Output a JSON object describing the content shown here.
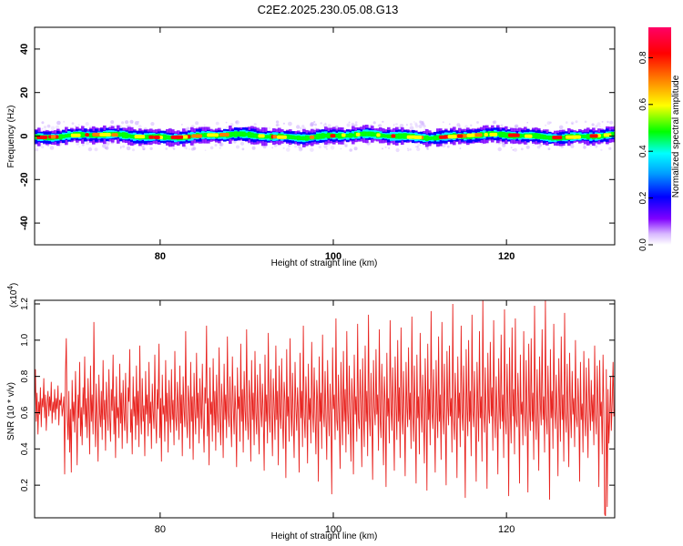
{
  "title": "C2E2.2025.230.05.08.G13",
  "chart_data": [
    {
      "type": "heatmap",
      "xlabel": "Height of straight line (km)",
      "ylabel": "Frequency (Hz)",
      "xlim": [
        65.5,
        132.5
      ],
      "ylim": [
        -50,
        50
      ],
      "xticks": [
        80,
        100,
        120
      ],
      "yticks": [
        -40,
        -20,
        0,
        20,
        40
      ],
      "band_center_hz": 0,
      "band_halfwidth_hz": 3,
      "colorbar": {
        "label": "Normalized spectral amplitude",
        "range": [
          0.0,
          0.93
        ],
        "ticks": [
          "0.0",
          "0.2",
          "0.4",
          "0.6",
          "0.8"
        ],
        "colormap": [
          "#ffffff",
          "#7f00ff",
          "#0000ff",
          "#00ffff",
          "#00ff00",
          "#ffff00",
          "#ff8000",
          "#ff0000",
          "#ff0066"
        ]
      }
    },
    {
      "type": "line",
      "xlabel": "Height of straight line (km)",
      "ylabel": "SNR (10 * v/v)",
      "y_scale_label": "(x10",
      "y_scale_exp": "4",
      "y_scale_suffix": ")",
      "xlim": [
        65.5,
        132.5
      ],
      "ylim": [
        0.02,
        1.22
      ],
      "xticks": [
        80,
        100,
        120
      ],
      "yticks": [
        0.2,
        0.4,
        0.6,
        0.8,
        1.0,
        1.2
      ],
      "ytick_labels": [
        "0.2",
        "0.4",
        "0.6",
        "0.8",
        "1.0",
        "1.2"
      ],
      "color": "#e8231f",
      "series": [
        {
          "x_start": 65.5,
          "x_end": 132.5,
          "values": [
            0.62,
            0.84,
            0.55,
            0.71,
            0.48,
            0.66,
            0.59,
            0.74,
            0.52,
            0.68,
            0.63,
            0.79,
            0.57,
            0.7,
            0.5,
            0.64,
            0.72,
            0.58,
            0.69,
            0.61,
            0.77,
            0.54,
            0.66,
            0.6,
            0.73,
            0.56,
            0.68,
            0.62,
            0.75,
            0.53,
            0.67,
            0.64,
            0.71,
            0.58,
            0.63,
            0.69,
            0.26,
            0.82,
            1.01,
            0.58,
            0.45,
            0.72,
            0.38,
            0.62,
            0.27,
            0.78,
            0.55,
            0.66,
            0.49,
            0.83,
            0.6,
            0.31,
            0.7,
            0.57,
            0.88,
            0.47,
            0.63,
            0.42,
            0.74,
            0.59,
            0.91,
            0.52,
            0.68,
            0.46,
            0.79,
            0.61,
            0.37,
            0.86,
            0.55,
            0.7,
            0.48,
            1.1,
            0.64,
            0.41,
            0.76,
            0.58,
            0.33,
            0.81,
            0.6,
            0.52,
            0.72,
            0.45,
            0.89,
            0.56,
            0.67,
            0.39,
            0.77,
            0.62,
            0.5,
            0.84,
            0.58,
            0.44,
            0.73,
            0.61,
            0.92,
            0.48,
            0.69,
            0.35,
            0.8,
            0.57,
            0.63,
            0.46,
            0.87,
            0.54,
            0.71,
            0.4,
            0.78,
            0.6,
            0.5,
            0.82,
            0.56,
            0.43,
            0.74,
            0.66,
            0.95,
            0.49,
            0.62,
            0.37,
            0.8,
            0.58,
            0.69,
            0.45,
            0.86,
            0.53,
            0.72,
            0.41,
            0.97,
            0.6,
            0.48,
            0.79,
            0.55,
            0.64,
            0.36,
            0.83,
            0.59,
            0.7,
            0.47,
            0.88,
            0.54,
            0.66,
            0.4,
            0.76,
            0.61,
            0.51,
            0.92,
            0.57,
            0.43,
            0.73,
            0.62,
            0.98,
            0.46,
            0.68,
            0.33,
            0.81,
            0.59,
            0.64,
            0.44,
            0.89,
            0.55,
            0.71,
            0.38,
            0.78,
            0.6,
            0.49,
            0.84,
            0.56,
            0.67,
            0.42,
            0.94,
            0.58,
            0.5,
            0.77,
            0.63,
            0.45,
            0.86,
            0.54,
            0.7,
            0.36,
            0.8,
            0.61,
            0.52,
            1.05,
            0.57,
            0.46,
            0.75,
            0.64,
            0.4,
            0.88,
            0.55,
            0.69,
            0.34,
            0.82,
            0.6,
            0.48,
            0.93,
            0.57,
            0.71,
            0.43,
            0.79,
            0.62,
            0.51,
            0.87,
            0.56,
            0.38,
            0.74,
            0.65,
            1.08,
            0.47,
            0.68,
            0.31,
            0.85,
            0.59,
            0.66,
            0.44,
            0.9,
            0.53,
            0.72,
            0.39,
            0.81,
            0.61,
            0.49,
            0.96,
            0.58,
            0.42,
            0.76,
            0.63,
            0.35,
            0.87,
            0.56,
            0.7,
            0.46,
            1.02,
            0.6,
            0.52,
            0.8,
            0.57,
            0.41,
            0.91,
            0.64,
            0.48,
            0.75,
            0.59,
            0.3,
            0.85,
            0.62,
            0.69,
            0.44,
            0.98,
            0.55,
            0.73,
            0.38,
            0.83,
            0.61,
            0.5,
            1.06,
            0.58,
            0.45,
            0.78,
            0.65,
            0.33,
            0.89,
            0.56,
            0.71,
            0.42,
            0.94,
            0.6,
            0.48,
            0.81,
            0.57,
            0.37,
            0.87,
            0.63,
            0.52,
            0.76,
            0.59,
            0.28,
            0.92,
            0.55,
            0.7,
            0.43,
            1.04,
            0.61,
            0.49,
            0.84,
            0.58,
            0.36,
            0.79,
            0.64,
            0.45,
            0.97,
            0.56,
            0.72,
            0.31,
            0.86,
            0.6,
            0.51,
            0.9,
            0.57,
            0.4,
            0.77,
            0.66,
            0.24,
            0.95,
            0.58,
            0.69,
            0.44,
            1.01,
            0.62,
            0.47,
            0.82,
            0.55,
            0.35,
            0.88,
            0.63,
            0.5,
            0.74,
            0.6,
            0.27,
            0.93,
            0.57,
            0.72,
            0.41,
            1.08,
            0.59,
            0.46,
            0.8,
            0.64,
            0.32,
            0.87,
            0.56,
            0.68,
            0.43,
            0.99,
            0.61,
            0.49,
            0.85,
            0.58,
            0.37,
            0.78,
            0.66,
            0.22,
            0.91,
            0.55,
            0.71,
            0.4,
            1.03,
            0.6,
            0.52,
            0.83,
            0.57,
            0.34,
            0.89,
            0.63,
            0.47,
            0.76,
            0.59,
            0.15,
            0.96,
            0.62,
            0.7,
            0.45,
            1.12,
            0.56,
            0.5,
            0.81,
            0.58,
            0.29,
            0.88,
            0.64,
            0.42,
            0.94,
            0.55,
            0.73,
            0.38,
            1.05,
            0.61,
            0.48,
            0.86,
            0.57,
            0.33,
            0.79,
            0.65,
            0.26,
            0.92,
            0.59,
            0.69,
            0.44,
            1.09,
            0.56,
            0.51,
            0.84,
            0.62,
            0.3,
            0.9,
            0.58,
            0.41,
            0.97,
            0.55,
            0.72,
            0.36,
            1.14,
            0.6,
            0.47,
            0.82,
            0.57,
            0.23,
            0.89,
            0.63,
            0.53,
            0.95,
            0.59,
            0.7,
            0.39,
            1.06,
            0.56,
            0.46,
            0.87,
            0.61,
            0.31,
            0.8,
            0.66,
            0.19,
            0.93,
            0.58,
            0.68,
            0.43,
            1.11,
            0.62,
            0.5,
            0.85,
            0.57,
            0.28,
            0.91,
            0.64,
            0.45,
            1.0,
            0.55,
            0.74,
            0.35,
            1.07,
            0.6,
            0.48,
            0.83,
            0.58,
            0.25,
            0.88,
            0.63,
            0.52,
            0.96,
            0.56,
            0.71,
            0.4,
            1.13,
            0.59,
            0.44,
            0.86,
            0.61,
            0.21,
            0.92,
            0.57,
            0.69,
            0.37,
            1.04,
            0.62,
            0.49,
            0.81,
            0.58,
            0.32,
            0.9,
            0.65,
            0.17,
            0.98,
            0.56,
            0.73,
            0.42,
            1.16,
            0.6,
            0.51,
            0.84,
            0.57,
            0.27,
            0.89,
            0.63,
            0.46,
            1.02,
            0.55,
            0.7,
            0.34,
            1.1,
            0.61,
            0.48,
            0.87,
            0.59,
            0.2,
            0.94,
            0.64,
            0.53,
            0.97,
            0.58,
            0.68,
            0.38,
            1.2,
            0.56,
            0.45,
            0.82,
            0.62,
            0.24,
            0.91,
            0.57,
            0.71,
            0.41,
            1.08,
            0.6,
            0.5,
            0.86,
            0.58,
            0.13,
            0.95,
            0.63,
            0.47,
            1.0,
            0.55,
            0.72,
            0.36,
            1.14,
            0.61,
            0.52,
            0.83,
            0.59,
            0.22,
            0.88,
            0.65,
            0.44,
            1.05,
            0.57,
            0.69,
            0.33,
            1.22,
            0.6,
            0.49,
            0.85,
            0.56,
            0.18,
            0.93,
            0.62,
            0.54,
            0.99,
            0.58,
            0.74,
            0.39,
            1.11,
            0.61,
            0.46,
            0.8,
            0.59,
            0.26,
            0.9,
            0.64,
            0.51,
            1.03,
            0.55,
            0.7,
            0.35,
            1.17,
            0.57,
            0.48,
            0.87,
            0.62,
            0.14,
            0.96,
            0.6,
            0.43,
            1.07,
            0.58,
            0.73,
            0.37,
            1.12,
            0.56,
            0.52,
            0.82,
            0.63,
            0.21,
            0.92,
            0.59,
            0.66,
            0.42,
            1.05,
            0.61,
            0.47,
            0.89,
            0.57,
            0.16,
            0.98,
            0.62,
            0.5,
            1.01,
            0.55,
            0.71,
            0.34,
            1.19,
            0.6,
            0.45,
            0.84,
            0.58,
            0.28,
            0.91,
            0.64,
            0.53,
            1.06,
            0.56,
            0.69,
            0.38,
            1.22,
            0.59,
            0.48,
            0.86,
            0.61,
            0.12,
            0.95,
            0.57,
            0.72,
            0.4,
            1.09,
            0.63,
            0.51,
            0.81,
            0.58,
            0.25,
            0.9,
            0.66,
            0.44,
            1.02,
            0.56,
            0.7,
            0.33,
            1.15,
            0.6,
            0.49,
            0.87,
            0.57,
            0.3,
            0.93,
            0.62,
            0.46,
            0.83,
            0.59,
            0.68,
            0.41,
            1.0,
            0.58,
            0.52,
            0.79,
            0.61,
            0.22,
            0.88,
            0.56,
            0.65,
            0.38,
            0.94,
            0.6,
            0.47,
            0.85,
            0.57,
            0.35,
            0.9,
            0.63,
            0.5,
            0.78,
            0.55,
            0.7,
            0.42,
            0.97,
            0.59,
            0.48,
            0.86,
            0.62,
            0.19,
            0.89,
            0.58,
            0.66,
            0.37,
            0.92,
            0.61,
            0.04,
            0.03,
            0.84,
            0.08,
            0.73,
            0.43,
            0.56,
            0.8,
            0.5,
            0.66,
            0.88,
            0.58,
            0.62
          ]
        }
      ]
    }
  ]
}
